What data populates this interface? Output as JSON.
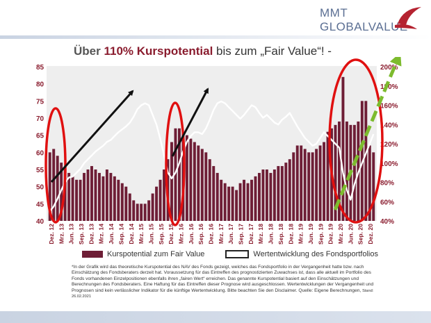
{
  "brand": {
    "line1": "MMT",
    "line2": "GLOBALVALUE"
  },
  "headline": {
    "part1": "Über ",
    "highlight": "110% Kurspotential",
    "part2": " bis zum „Fair Value“! -"
  },
  "colors": {
    "bar": "#6e1e36",
    "line": "#ffffff",
    "circle": "#e01010",
    "arrow_black": "#111111",
    "arrow_green": "#7dbb2e",
    "axis_text": "#8a1c2e"
  },
  "chart_data": {
    "type": "bar",
    "title": "",
    "y_left": {
      "ticks": [
        40,
        45,
        50,
        55,
        60,
        65,
        70,
        75,
        80,
        85
      ],
      "min": 40,
      "max": 85
    },
    "y_right": {
      "ticks": [
        "40%",
        "60%",
        "80%",
        "100%",
        "120%",
        "140%",
        "160%",
        "180%",
        "200%"
      ],
      "min": 40,
      "max": 200
    },
    "x_ticks": [
      "Dez. 12",
      "Mrz. 13",
      "Jun. 13",
      "Sep. 13",
      "Dez. 13",
      "Mrz. 14",
      "Jun. 14",
      "Sep. 14",
      "Dez. 14",
      "Mrz. 15",
      "Jun. 15",
      "Sep. 15",
      "Dez. 15",
      "Mrz. 16",
      "Jun. 16",
      "Sep. 16",
      "Dez. 16",
      "Mrz. 17",
      "Jun. 17",
      "Sep. 17",
      "Dez. 17",
      "Mrz. 18",
      "Jun. 18",
      "Sep. 18",
      "Dez. 18",
      "Mrz. 19",
      "Jun. 19",
      "Sep. 19",
      "Dez. 19",
      "Mrz. 20",
      "Jun. 20",
      "Sep. 20",
      "Dez. 20"
    ],
    "series": [
      {
        "name": "Kurspotential zum Fair Value",
        "type": "bar",
        "axis": "left",
        "values": [
          60,
          61,
          59,
          57,
          55,
          54,
          53,
          52,
          52,
          54,
          55,
          56,
          55,
          54,
          53,
          55,
          54,
          53,
          52,
          51,
          50,
          48,
          46,
          45,
          45,
          45,
          46,
          48,
          50,
          52,
          55,
          58,
          63,
          67,
          67,
          66,
          65,
          64,
          63,
          62,
          61,
          60,
          58,
          56,
          54,
          52,
          51,
          50,
          50,
          49,
          51,
          52,
          51,
          52,
          53,
          54,
          55,
          55,
          54,
          55,
          56,
          56,
          57,
          58,
          60,
          62,
          62,
          61,
          60,
          60,
          61,
          62,
          63,
          66,
          67,
          68,
          69,
          82,
          69,
          68,
          68,
          69,
          75,
          75,
          62,
          60
        ]
      },
      {
        "name": "Wertentwicklung des Fondsportfolios",
        "type": "line",
        "axis": "right",
        "values": [
          50,
          55,
          63,
          72,
          80,
          85,
          86,
          90,
          94,
          100,
          104,
          108,
          112,
          115,
          118,
          122,
          124,
          128,
          132,
          135,
          138,
          142,
          148,
          156,
          160,
          162,
          160,
          150,
          140,
          125,
          108,
          90,
          84,
          90,
          100,
          112,
          122,
          128,
          132,
          132,
          130,
          136,
          145,
          155,
          162,
          164,
          162,
          158,
          154,
          150,
          146,
          150,
          155,
          160,
          158,
          152,
          147,
          150,
          146,
          142,
          140,
          145,
          148,
          152,
          145,
          138,
          132,
          126,
          122,
          118,
          120,
          126,
          132,
          128,
          124,
          120,
          116,
          90,
          72,
          62,
          78,
          90,
          100,
          110,
          120,
          130
        ]
      }
    ],
    "legend_position": "bottom"
  },
  "legend": {
    "bar_label": "Kurspotential zum Fair Value",
    "line_label": "Wertentwicklung des Fondsportfolios"
  },
  "footnote": {
    "text": "*In der Grafik wird das theoretische Kurspotential des NAV des Fonds gezeigt, welches das Fondsportfolio in der Vergangenheit hatte bzw. nach Einschätzung des Fondsberaters derzeit hat. Voraussetzung für das Eintreffen des prognostizierten Zuwachses ist, dass alle aktuell im Portfolio des Fonds vorhandenen Einzelpositionen ebenfalls ihren „fairen Wert“ erreichen. Das genannte Kurspotential basiert auf den Einschätzungen und Berechnungen des Fondsberaters. Eine Haftung für das Eintreffen dieser Prognose wird ausgeschlossen. Wertentwicklungen der Vergangenheit und Prognosen sind kein verlässlicher Indikator für die künftige Wertentwicklung. Bitte beachten Sie den Disclaimer. Quelle: Eigene Berechnungen,",
    "stand": "Stand: 26.02.2021"
  }
}
